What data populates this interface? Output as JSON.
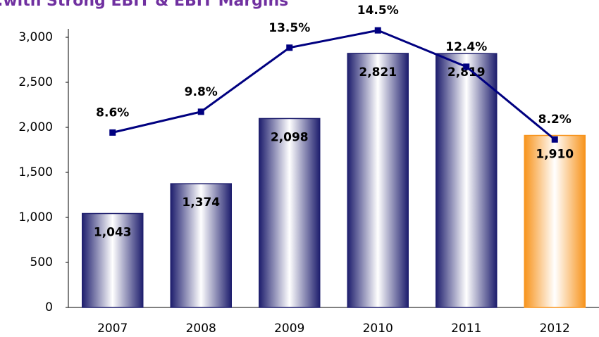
{
  "chart_data": {
    "type": "bar",
    "title": ".with Strong EBIT & EBIT Margins",
    "categories": [
      "2007",
      "2008",
      "2009",
      "2010",
      "2011",
      "2012"
    ],
    "series": [
      {
        "type": "bar",
        "colors": [
          "#1f1f6e",
          "#1f1f6e",
          "#1f1f6e",
          "#1f1f6e",
          "#1f1f6e",
          "#f7941d"
        ],
        "values": [
          1043,
          1374,
          2098,
          2821,
          2819,
          1910
        ],
        "value_labels": [
          "1,043",
          "1,374",
          "2,098",
          "2,821",
          "2,819",
          "1,910"
        ]
      },
      {
        "type": "line",
        "axis": "y2",
        "color": "#000080",
        "values": [
          8.6,
          9.8,
          13.5,
          14.5,
          12.4,
          8.2
        ],
        "value_labels": [
          "8.6%",
          "9.8%",
          "13.5%",
          "14.5%",
          "12.4%",
          "8.2%"
        ]
      }
    ],
    "ylim": [
      0,
      3000
    ],
    "yticks": [
      0,
      500,
      {
        "value": 1000,
        "label": "1,000"
      },
      {
        "value": 1500,
        "label": "1,500"
      },
      {
        "value": 2000,
        "label": "2,000"
      },
      {
        "value": 2500,
        "label": "2,500"
      },
      {
        "value": 3000,
        "label": "3,000"
      }
    ],
    "y2lim": [
      -1.5,
      14.1
    ]
  }
}
